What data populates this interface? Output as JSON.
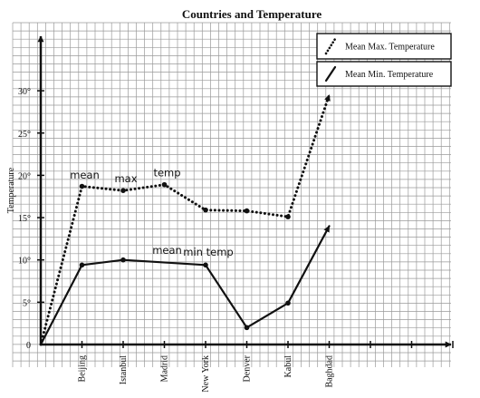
{
  "chart_data": {
    "type": "line",
    "title": "Countries and Temperature",
    "ylabel": "Temperature",
    "xlabel": "",
    "categories": [
      "Beijing",
      "Istanbul",
      "Madrid",
      "New York",
      "Denver",
      "Kabul",
      "Baghdad"
    ],
    "yticks": [
      "5°",
      "10°",
      "15°",
      "20°",
      "25°",
      "30°"
    ],
    "ytick_values": [
      5,
      10,
      15,
      20,
      25,
      30
    ],
    "origin_label": "0",
    "ylim": [
      0,
      32
    ],
    "grid": true,
    "legend_position": "top-right",
    "series": [
      {
        "name": "Mean Max. Temperature",
        "style": "dotted",
        "start": 0,
        "values": [
          18.7,
          18.2,
          18.9,
          15.9,
          15.8,
          15.1,
          29.5
        ],
        "final_arrow": true
      },
      {
        "name": "Mean Min. Temperature",
        "style": "solid",
        "start": 0,
        "values": [
          9.4,
          10.0,
          null,
          9.4,
          2.0,
          4.9,
          14.0
        ],
        "final_arrow": true
      }
    ],
    "annotations": [
      {
        "text": "mean",
        "category": "Beijing",
        "y": 19.6
      },
      {
        "text": "max",
        "category": "Istanbul",
        "y": 19.2
      },
      {
        "text": "temp",
        "category": "Madrid",
        "y": 19.9
      },
      {
        "text": "mean",
        "category": "Madrid",
        "y": 10.7
      },
      {
        "text": "min temp",
        "category": "New York",
        "y": 10.5
      }
    ],
    "colors": {
      "line": "#111111",
      "grid": "#9a9a9a",
      "axis": "#111111",
      "text": "#111111"
    }
  }
}
